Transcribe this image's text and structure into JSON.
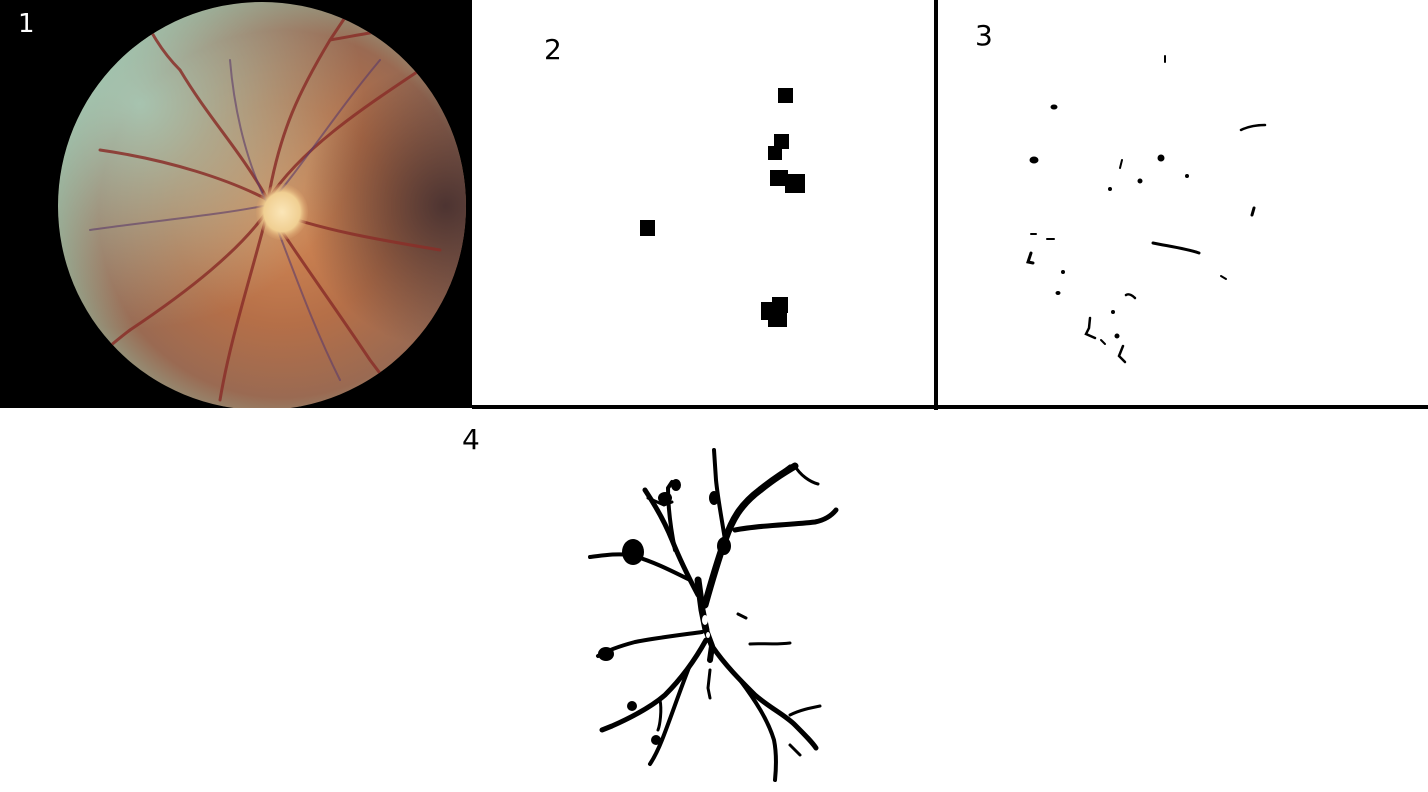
{
  "panels": [
    {
      "label": "1"
    },
    {
      "label": "2"
    },
    {
      "label": "3"
    },
    {
      "label": "4"
    }
  ],
  "colors": {
    "background": "#ffffff",
    "separator": "#000000",
    "fundus_outer": "#8fb59c",
    "fundus_inner": "#b8704a",
    "optic_disc": "#f3d7a0",
    "vessel": "#8a2f2a",
    "mask": "#000000"
  }
}
